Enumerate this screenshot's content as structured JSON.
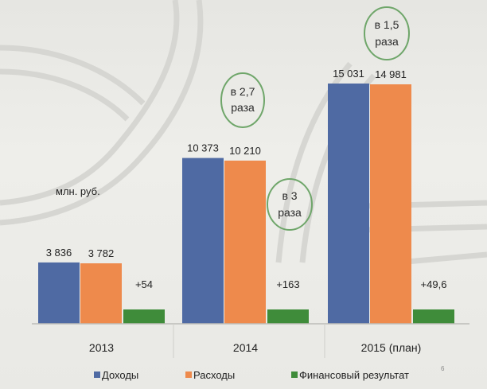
{
  "slide": {
    "unit_label": "млн. руб.",
    "page_number": "6"
  },
  "chart_data": {
    "type": "bar",
    "categories": [
      "2013",
      "2014",
      "2015 (план)"
    ],
    "series": [
      {
        "name": "Доходы",
        "color": "#4f6aa3",
        "values": [
          3836,
          10373,
          15031
        ],
        "labels": [
          "3 836",
          "10 373",
          "15 031"
        ]
      },
      {
        "name": "Расходы",
        "color": "#ee8a4c",
        "values": [
          3782,
          10210,
          14981
        ],
        "labels": [
          "3 782",
          "10 210",
          "14 981"
        ]
      },
      {
        "name": "Финансовый результат",
        "color": "#3f8c3a",
        "values": [
          54,
          163,
          49.6
        ],
        "labels": [
          "+54",
          "+163",
          "+49,6"
        ]
      }
    ],
    "annotations": [
      {
        "line1": "в 2,7",
        "line2": "раза",
        "target": "Доходы 2014"
      },
      {
        "line1": "в 3",
        "line2": "раза",
        "target": "Финансовый результат 2014"
      },
      {
        "line1": "в 1,5",
        "line2": "раза",
        "target": "Доходы 2015 (план)"
      }
    ],
    "legend_position": "bottom",
    "grid": false
  }
}
